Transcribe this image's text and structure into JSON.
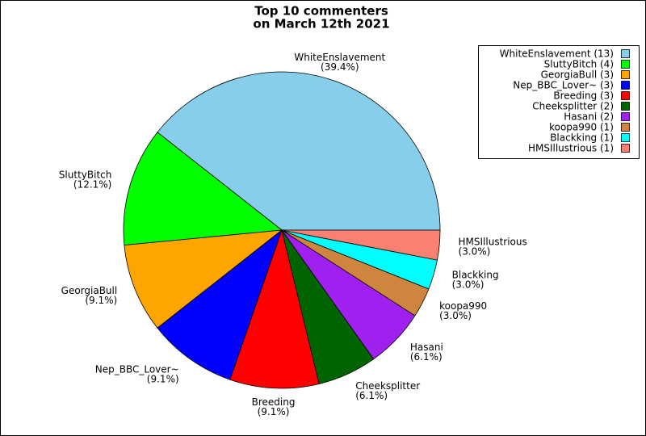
{
  "chart_data": {
    "type": "pie",
    "title": [
      "Top 10 commenters",
      "on March 12th 2021"
    ],
    "categories": [
      "WhiteEnslavement",
      "SluttyBitch",
      "GeorgiaBull",
      "Nep_BBC_Lover~",
      "Breeding",
      "Cheeksplitter",
      "Hasani",
      "koopa990",
      "Blackking",
      "HMSIllustrious"
    ],
    "values": [
      13,
      4,
      3,
      3,
      3,
      2,
      2,
      1,
      1,
      1
    ],
    "value_labels": [
      "(39.4%)",
      "(12.1%)",
      "(9.1%)",
      "(9.1%)",
      "(9.1%)",
      "(6.1%)",
      "(6.1%)",
      "(3.0%)",
      "(3.0%)",
      "(3.0%)"
    ],
    "legend_labels": [
      "WhiteEnslavement (13)",
      "SluttyBitch (4)",
      "GeorgiaBull (3)",
      "Nep_BBC_Lover~ (3)",
      "Breeding (3)",
      "Cheeksplitter (2)",
      "Hasani (2)",
      "koopa990 (1)",
      "Blackking (1)",
      "HMSIllustrious (1)"
    ],
    "colors": [
      "#87ceeb",
      "#00ff00",
      "#ffa500",
      "#0000ff",
      "#ff0000",
      "#006400",
      "#a020f0",
      "#cd853f",
      "#00ffff",
      "#fa8072"
    ],
    "legend": "upper right"
  }
}
